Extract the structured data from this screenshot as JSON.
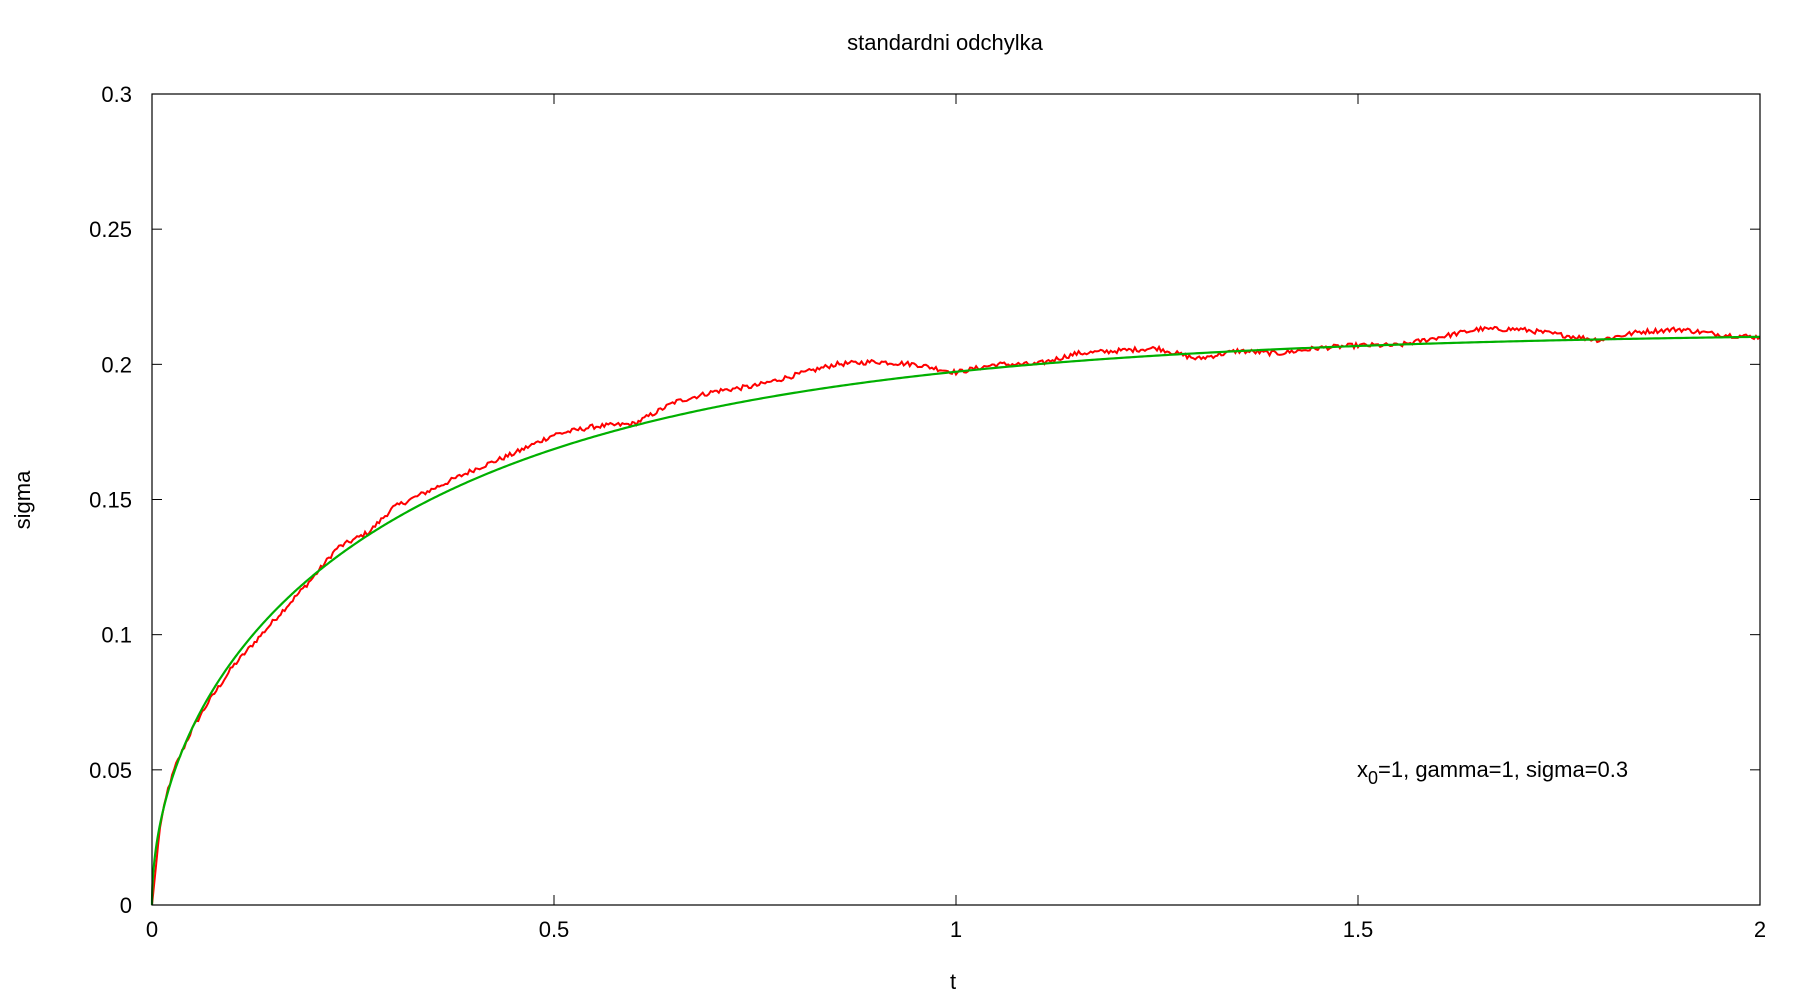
{
  "chart_data": {
    "type": "line",
    "title": "standardni odchylka",
    "xlabel": "t",
    "ylabel": "sigma",
    "xlim": [
      0,
      2
    ],
    "ylim": [
      0,
      0.3
    ],
    "xticks": [
      0,
      0.5,
      1,
      1.5,
      2
    ],
    "xtick_labels": [
      "0",
      "0.5",
      "1",
      "1.5",
      "2"
    ],
    "yticks": [
      0,
      0.05,
      0.1,
      0.15,
      0.2,
      0.25,
      0.3
    ],
    "ytick_labels": [
      "0",
      "0.05",
      "0.1",
      "0.15",
      "0.2",
      "0.25",
      "0.3"
    ],
    "grid": false,
    "legend": "none",
    "annotation": {
      "base": "x",
      "subscript": "0",
      "rest": "=1, gamma=1, sigma=0.3"
    },
    "series": [
      {
        "color": "#ff0000",
        "x": [
          0,
          0.01,
          0.02,
          0.03,
          0.05,
          0.07,
          0.1,
          0.13,
          0.16,
          0.2,
          0.23,
          0.27,
          0.3,
          0.35,
          0.4,
          0.45,
          0.5,
          0.55,
          0.6,
          0.65,
          0.7,
          0.75,
          0.8,
          0.85,
          0.9,
          0.95,
          1.0,
          1.05,
          1.1,
          1.15,
          1.2,
          1.25,
          1.3,
          1.35,
          1.4,
          1.45,
          1.5,
          1.55,
          1.6,
          1.65,
          1.7,
          1.75,
          1.8,
          1.85,
          1.9,
          1.95,
          2.0
        ],
        "values": [
          0,
          0.029,
          0.043,
          0.052,
          0.065,
          0.075,
          0.088,
          0.098,
          0.108,
          0.121,
          0.132,
          0.138,
          0.147,
          0.154,
          0.161,
          0.167,
          0.174,
          0.177,
          0.178,
          0.186,
          0.19,
          0.192,
          0.196,
          0.2,
          0.201,
          0.2,
          0.197,
          0.2,
          0.2,
          0.204,
          0.205,
          0.206,
          0.202,
          0.205,
          0.204,
          0.206,
          0.207,
          0.207,
          0.21,
          0.213,
          0.213,
          0.211,
          0.209,
          0.212,
          0.213,
          0.211,
          0.21
        ]
      },
      {
        "color": "#00b000",
        "function": "sigma*sqrt((1-exp(-2*gamma*t))/(2*gamma))",
        "params": {
          "x0": 1,
          "gamma": 1,
          "sigma": 0.3
        }
      }
    ]
  }
}
